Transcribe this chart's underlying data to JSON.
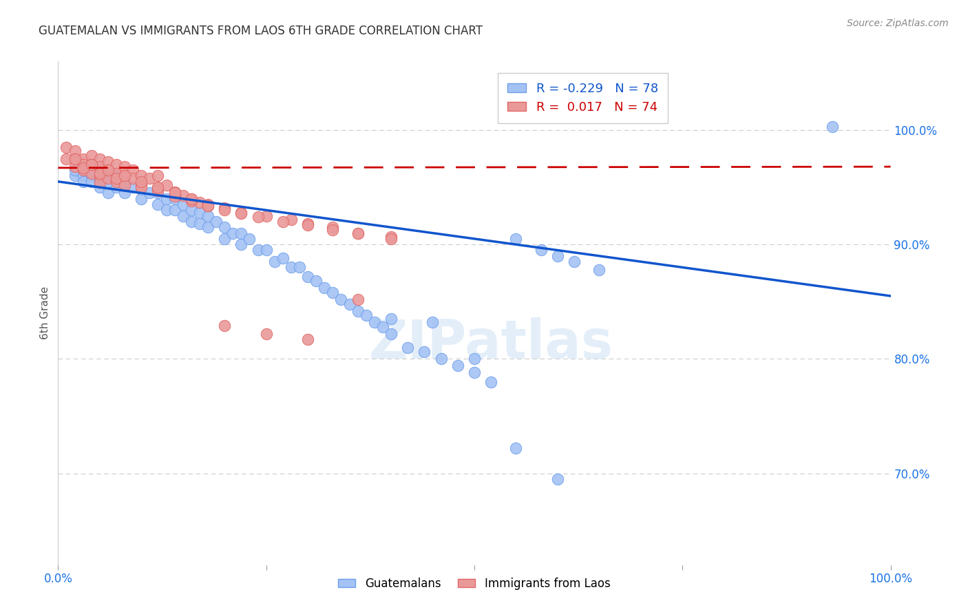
{
  "title": "GUATEMALAN VS IMMIGRANTS FROM LAOS 6TH GRADE CORRELATION CHART",
  "source": "Source: ZipAtlas.com",
  "ylabel": "6th Grade",
  "legend_blue_r": "-0.229",
  "legend_blue_n": "78",
  "legend_pink_r": "0.017",
  "legend_pink_n": "74",
  "blue_color": "#a4c2f4",
  "pink_color": "#ea9999",
  "blue_edge_color": "#6d9eeb",
  "pink_edge_color": "#e06666",
  "blue_line_color": "#1155cc",
  "pink_line_color": "#cc0000",
  "watermark": "ZIPatlas",
  "xlim": [
    0.0,
    1.0
  ],
  "ylim": [
    0.62,
    1.06
  ],
  "yticks": [
    0.7,
    0.8,
    0.9,
    1.0
  ],
  "ytick_labels": [
    "70.0%",
    "80.0%",
    "90.0%",
    "100.0%"
  ],
  "xtick_positions": [
    0.0,
    0.25,
    0.5,
    0.75,
    1.0
  ],
  "xtick_labels": [
    "0.0%",
    "",
    "",
    "",
    "100.0%"
  ],
  "blue_trendline_x": [
    0.0,
    1.0
  ],
  "blue_trendline_y": [
    0.955,
    0.855
  ],
  "pink_trendline_x": [
    0.0,
    1.0
  ],
  "pink_trendline_y": [
    0.967,
    0.968
  ],
  "blue_x": [
    0.02,
    0.02,
    0.03,
    0.03,
    0.03,
    0.04,
    0.04,
    0.04,
    0.04,
    0.05,
    0.05,
    0.05,
    0.06,
    0.06,
    0.06,
    0.07,
    0.07,
    0.08,
    0.08,
    0.09,
    0.1,
    0.1,
    0.11,
    0.12,
    0.12,
    0.13,
    0.13,
    0.14,
    0.14,
    0.15,
    0.15,
    0.16,
    0.16,
    0.17,
    0.17,
    0.18,
    0.18,
    0.19,
    0.2,
    0.2,
    0.21,
    0.22,
    0.22,
    0.23,
    0.24,
    0.25,
    0.26,
    0.27,
    0.28,
    0.29,
    0.3,
    0.31,
    0.32,
    0.33,
    0.34,
    0.35,
    0.36,
    0.37,
    0.38,
    0.39,
    0.4,
    0.42,
    0.44,
    0.46,
    0.48,
    0.5,
    0.52,
    0.55,
    0.58,
    0.6,
    0.62,
    0.65,
    0.4,
    0.45,
    0.5,
    0.55,
    0.6,
    0.93
  ],
  "blue_y": [
    0.96,
    0.965,
    0.97,
    0.96,
    0.955,
    0.97,
    0.965,
    0.96,
    0.955,
    0.965,
    0.955,
    0.95,
    0.96,
    0.955,
    0.945,
    0.96,
    0.95,
    0.955,
    0.945,
    0.95,
    0.948,
    0.94,
    0.945,
    0.945,
    0.935,
    0.94,
    0.93,
    0.94,
    0.93,
    0.935,
    0.925,
    0.93,
    0.92,
    0.928,
    0.918,
    0.925,
    0.915,
    0.92,
    0.915,
    0.905,
    0.91,
    0.91,
    0.9,
    0.905,
    0.895,
    0.895,
    0.885,
    0.888,
    0.88,
    0.88,
    0.872,
    0.868,
    0.862,
    0.858,
    0.852,
    0.848,
    0.842,
    0.838,
    0.832,
    0.828,
    0.822,
    0.81,
    0.806,
    0.8,
    0.794,
    0.788,
    0.78,
    0.905,
    0.895,
    0.89,
    0.885,
    0.878,
    0.835,
    0.832,
    0.8,
    0.722,
    0.695,
    1.003
  ],
  "pink_x": [
    0.01,
    0.01,
    0.02,
    0.02,
    0.02,
    0.03,
    0.03,
    0.03,
    0.04,
    0.04,
    0.04,
    0.05,
    0.05,
    0.05,
    0.05,
    0.06,
    0.06,
    0.06,
    0.07,
    0.07,
    0.07,
    0.08,
    0.08,
    0.09,
    0.09,
    0.1,
    0.1,
    0.11,
    0.12,
    0.12,
    0.13,
    0.14,
    0.15,
    0.16,
    0.17,
    0.18,
    0.2,
    0.22,
    0.25,
    0.28,
    0.3,
    0.33,
    0.36,
    0.4,
    0.03,
    0.05,
    0.07,
    0.08,
    0.1,
    0.12,
    0.14,
    0.16,
    0.18,
    0.2,
    0.22,
    0.24,
    0.27,
    0.3,
    0.33,
    0.36,
    0.4,
    0.02,
    0.04,
    0.06,
    0.08,
    0.1,
    0.12,
    0.14,
    0.16,
    0.18,
    0.2,
    0.25,
    0.3,
    0.36
  ],
  "pink_y": [
    0.985,
    0.975,
    0.982,
    0.975,
    0.968,
    0.975,
    0.97,
    0.965,
    0.978,
    0.97,
    0.962,
    0.975,
    0.968,
    0.96,
    0.954,
    0.972,
    0.965,
    0.958,
    0.97,
    0.962,
    0.955,
    0.968,
    0.96,
    0.965,
    0.958,
    0.96,
    0.952,
    0.958,
    0.96,
    0.95,
    0.952,
    0.946,
    0.943,
    0.94,
    0.937,
    0.934,
    0.932,
    0.928,
    0.925,
    0.922,
    0.918,
    0.915,
    0.91,
    0.907,
    0.967,
    0.962,
    0.958,
    0.952,
    0.95,
    0.947,
    0.942,
    0.938,
    0.935,
    0.93,
    0.927,
    0.924,
    0.92,
    0.917,
    0.913,
    0.91,
    0.905,
    0.975,
    0.97,
    0.965,
    0.96,
    0.955,
    0.95,
    0.945,
    0.94,
    0.934,
    0.829,
    0.822,
    0.817,
    0.852
  ]
}
